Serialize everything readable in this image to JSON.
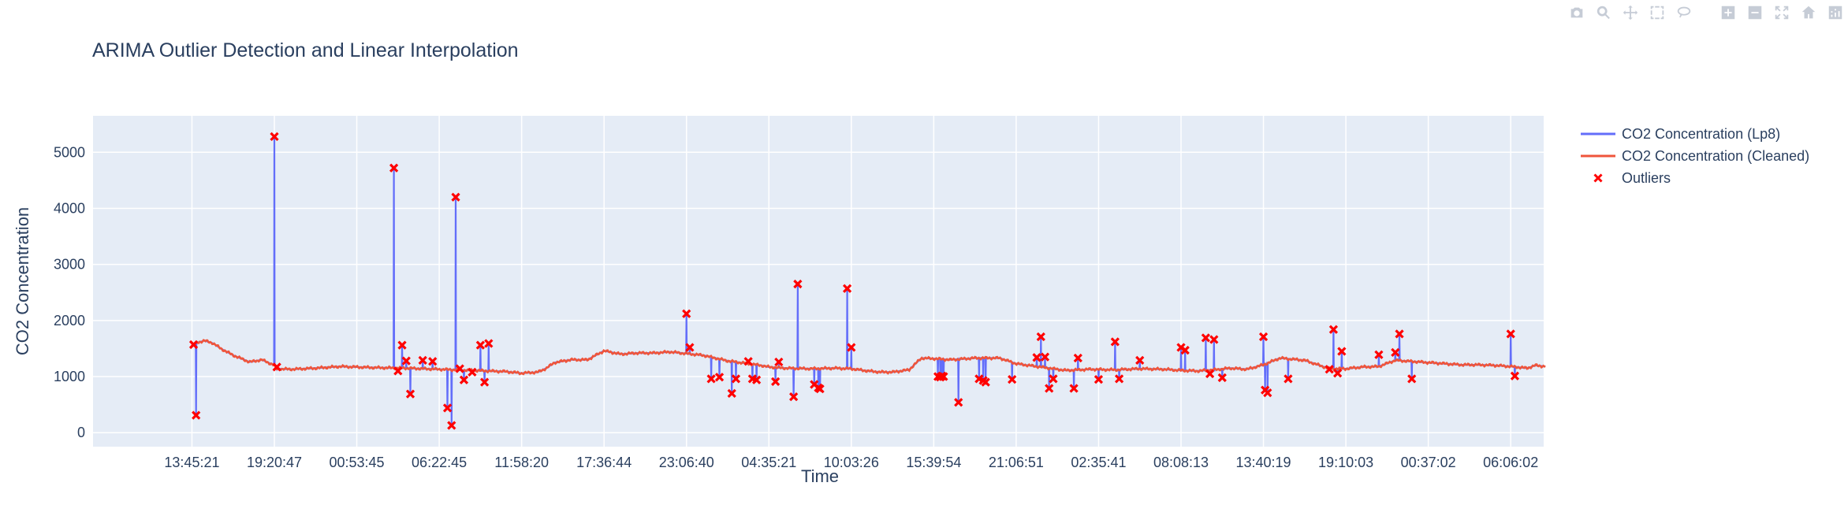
{
  "modebar": {
    "buttons": [
      {
        "name": "camera-icon"
      },
      {
        "name": "zoom-icon"
      },
      {
        "name": "pan-icon"
      },
      {
        "name": "box-select-icon"
      },
      {
        "name": "lasso-select-icon"
      },
      {
        "name": "zoom-in-icon"
      },
      {
        "name": "zoom-out-icon"
      },
      {
        "name": "autoscale-icon"
      },
      {
        "name": "reset-axes-icon"
      },
      {
        "name": "plotly-logo-icon"
      }
    ]
  },
  "colors": {
    "plot_bg": "#e5ecf6",
    "grid": "#ffffff",
    "raw_line": "#636efa",
    "cleaned_line": "#ef553b",
    "outlier_marker": "#ff0000",
    "text": "#2a3f5f"
  },
  "chart_data": {
    "type": "line",
    "title": "ARIMA Outlier Detection and Linear Interpolation",
    "xlabel": "Time",
    "ylabel": "CO2 Concentration",
    "grid": true,
    "legend_position": "top-right, outside plot",
    "x_ticks": [
      "13:45:21",
      "19:20:47",
      "00:53:45",
      "06:22:45",
      "11:58:20",
      "17:36:44",
      "23:06:40",
      "04:35:21",
      "10:03:26",
      "15:39:54",
      "21:06:51",
      "02:35:41",
      "08:08:13",
      "13:40:19",
      "19:10:03",
      "00:37:02",
      "06:06:02"
    ],
    "x_range": [
      -1.2,
      16.4
    ],
    "ylim": [
      -250,
      5650
    ],
    "y_ticks": [
      0,
      1000,
      2000,
      3000,
      4000,
      5000
    ],
    "series": [
      {
        "name": "CO2 Concentration (Lp8)",
        "key": "raw"
      },
      {
        "name": "CO2 Concentration (Cleaned)",
        "key": "cleaned"
      },
      {
        "name": "Outliers",
        "key": "outliers"
      }
    ],
    "cleaned": {
      "x": [
        0,
        0.05,
        0.1,
        0.15,
        0.25,
        0.35,
        0.5,
        0.7,
        0.85,
        1.0,
        1.02,
        1.2,
        1.5,
        1.8,
        2.2,
        2.6,
        3.0,
        3.4,
        3.8,
        4.0,
        4.2,
        4.3,
        4.4,
        4.6,
        4.8,
        4.9,
        5.0,
        5.2,
        5.4,
        5.6,
        5.8,
        6.0,
        6.2,
        6.5,
        6.9,
        7.0,
        7.2,
        7.5,
        7.8,
        8.0,
        8.1,
        8.2,
        8.35,
        8.5,
        8.7,
        8.85,
        9.0,
        9.2,
        9.5,
        9.8,
        10.0,
        10.3,
        10.6,
        10.9,
        11.2,
        11.5,
        11.8,
        12.0,
        12.2,
        12.4,
        12.6,
        12.8,
        13.0,
        13.2,
        13.5,
        13.8,
        14.0,
        14.2,
        14.4,
        14.6,
        14.8,
        15.0,
        15.2,
        15.4,
        15.6,
        15.8,
        16.0,
        16.2,
        16.3,
        16.42
      ],
      "y": [
        1550,
        1600,
        1620,
        1640,
        1600,
        1500,
        1380,
        1260,
        1300,
        1200,
        1140,
        1130,
        1150,
        1180,
        1160,
        1150,
        1130,
        1110,
        1090,
        1060,
        1080,
        1150,
        1250,
        1300,
        1300,
        1380,
        1460,
        1400,
        1420,
        1420,
        1440,
        1410,
        1380,
        1280,
        1200,
        1170,
        1150,
        1140,
        1150,
        1140,
        1120,
        1100,
        1080,
        1080,
        1120,
        1330,
        1320,
        1300,
        1330,
        1330,
        1230,
        1170,
        1110,
        1130,
        1120,
        1140,
        1130,
        1110,
        1100,
        1120,
        1150,
        1130,
        1210,
        1330,
        1290,
        1140,
        1140,
        1170,
        1180,
        1290,
        1270,
        1250,
        1230,
        1210,
        1210,
        1200,
        1180,
        1150,
        1200,
        1180
      ]
    },
    "outliers": {
      "x": [
        0.02,
        0.05,
        1.0,
        1.03,
        2.45,
        2.5,
        2.55,
        2.6,
        2.65,
        2.8,
        2.92,
        3.1,
        3.15,
        3.2,
        3.25,
        3.3,
        3.4,
        3.5,
        3.55,
        3.6,
        6.0,
        6.04,
        6.3,
        6.4,
        6.55,
        6.6,
        6.75,
        6.8,
        6.85,
        7.08,
        7.12,
        7.3,
        7.35,
        7.55,
        7.6,
        7.62,
        7.95,
        8.0,
        9.05,
        9.08,
        9.1,
        9.12,
        9.3,
        9.55,
        9.6,
        9.63,
        9.95,
        10.25,
        10.3,
        10.35,
        10.4,
        10.45,
        10.7,
        10.75,
        11.0,
        11.2,
        11.25,
        11.5,
        12.0,
        12.05,
        12.3,
        12.35,
        12.4,
        12.5,
        13.0,
        13.02,
        13.05,
        13.3,
        13.8,
        13.85,
        13.9,
        13.95,
        14.4,
        14.6,
        14.65,
        14.8,
        16.0,
        16.05
      ],
      "y": [
        1570,
        310,
        5280,
        1170,
        4720,
        1100,
        1560,
        1280,
        690,
        1290,
        1270,
        440,
        130,
        4200,
        1140,
        940,
        1080,
        1560,
        900,
        1590,
        2120,
        1520,
        960,
        990,
        700,
        960,
        1270,
        960,
        940,
        910,
        1260,
        640,
        2650,
        860,
        800,
        780,
        2570,
        1520,
        1000,
        990,
        1010,
        1000,
        540,
        960,
        930,
        900,
        950,
        1340,
        1710,
        1350,
        790,
        960,
        790,
        1330,
        950,
        1620,
        960,
        1290,
        1520,
        1470,
        1690,
        1050,
        1660,
        980,
        1710,
        760,
        710,
        960,
        1130,
        1840,
        1060,
        1450,
        1390,
        1430,
        1760,
        960,
        1760,
        1010
      ]
    }
  }
}
